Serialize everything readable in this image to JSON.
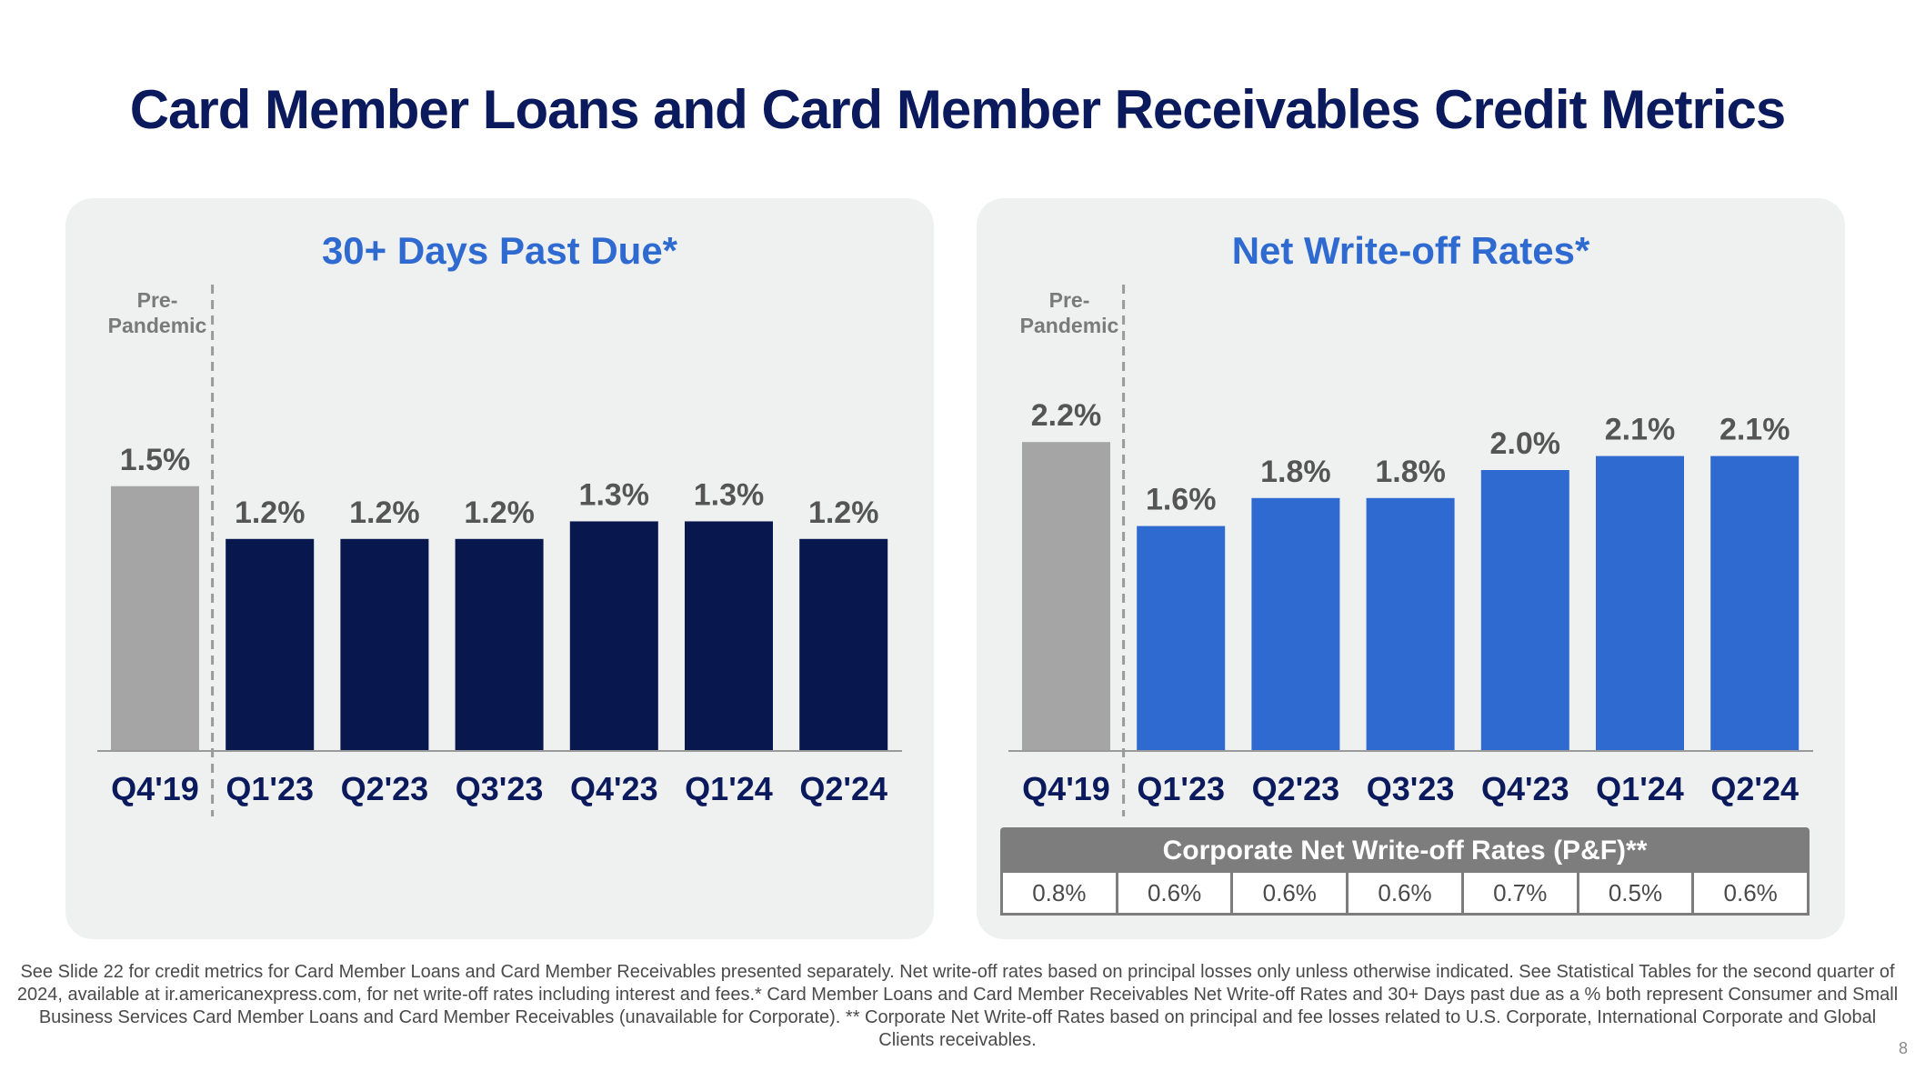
{
  "title": "Card Member Loans and Card Member Receivables Credit Metrics",
  "colors": {
    "title": "#0b1a5c",
    "panel_bg": "#eff0f0",
    "pre_pandemic_bar": "#a5a5a5",
    "dpd_bar": "#08184f",
    "nwo_bar": "#2f6ad0",
    "table_header": "#7d7d7d"
  },
  "pre_pandemic_label": "Pre-\nPandemic",
  "chart_data": [
    {
      "type": "bar",
      "title": "30+ Days Past Due*",
      "categories": [
        "Q4'19",
        "Q1'23",
        "Q2'23",
        "Q3'23",
        "Q4'23",
        "Q1'24",
        "Q2'24"
      ],
      "values": [
        1.5,
        1.2,
        1.2,
        1.2,
        1.3,
        1.3,
        1.2
      ],
      "value_labels": [
        "1.5%",
        "1.2%",
        "1.2%",
        "1.2%",
        "1.3%",
        "1.3%",
        "1.2%"
      ],
      "unit": "%",
      "ylim": [
        0,
        1.6
      ],
      "grid": false,
      "reference_divider_after": "Q4'19"
    },
    {
      "type": "bar",
      "title": "Net Write-off Rates*",
      "categories": [
        "Q4'19",
        "Q1'23",
        "Q2'23",
        "Q3'23",
        "Q4'23",
        "Q1'24",
        "Q2'24"
      ],
      "values": [
        2.2,
        1.6,
        1.8,
        1.8,
        2.0,
        2.1,
        2.1
      ],
      "value_labels": [
        "2.2%",
        "1.6%",
        "1.8%",
        "1.8%",
        "2.0%",
        "2.1%",
        "2.1%"
      ],
      "unit": "%",
      "ylim": [
        0,
        2.4
      ],
      "grid": false,
      "reference_divider_after": "Q4'19"
    }
  ],
  "corporate_table": {
    "header": "Corporate Net Write-off Rates (P&F)**",
    "values": [
      "0.8%",
      "0.6%",
      "0.6%",
      "0.6%",
      "0.7%",
      "0.5%",
      "0.6%"
    ]
  },
  "footnote": "See Slide 22 for credit metrics for Card Member Loans and Card Member Receivables presented separately. Net write-off rates based on principal losses only unless otherwise indicated. See Statistical Tables for the second quarter of 2024, available at ir.americanexpress.com, for net write-off rates including interest and fees.* Card Member Loans and Card Member Receivables Net Write-off Rates and 30+ Days past due as a % both represent Consumer and Small Business Services Card Member Loans and Card Member Receivables (unavailable for Corporate). ** Corporate Net Write-off Rates based on principal and fee losses related to U.S. Corporate, International Corporate and Global Clients receivables.",
  "page_number": "8"
}
